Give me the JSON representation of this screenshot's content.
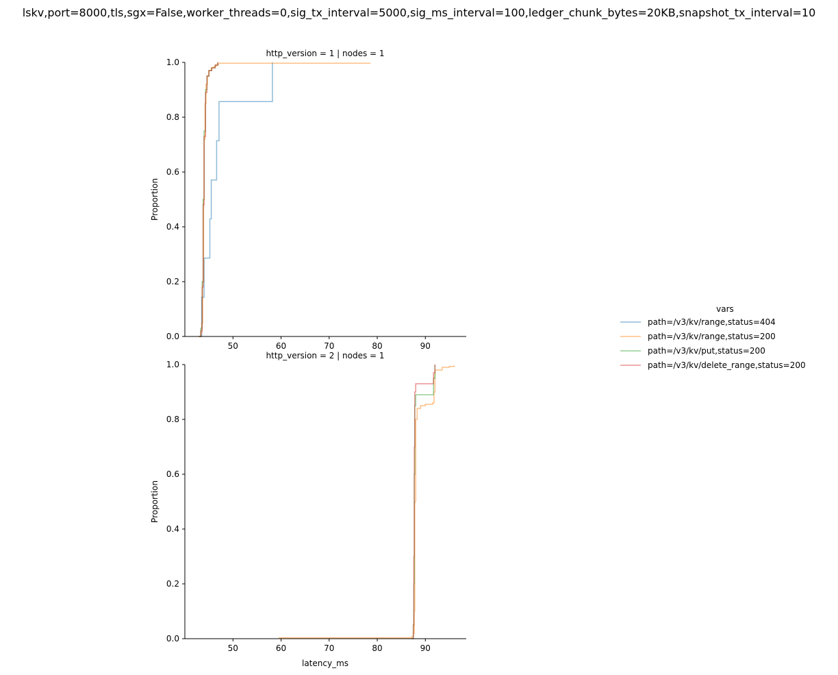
{
  "suptitle": "lskv,port=8000,tls,sgx=False,worker_threads=0,sig_tx_interval=5000,sig_ms_interval=100,ledger_chunk_bytes=20KB,snapshot_tx_interval=10",
  "legend": {
    "title": "vars",
    "entries": [
      {
        "label": "path=/v3/kv/range,status=404",
        "color": "#1f77b4"
      },
      {
        "label": "path=/v3/kv/range,status=200",
        "color": "#ff7f0e"
      },
      {
        "label": "path=/v3/kv/put,status=200",
        "color": "#2ca02c"
      },
      {
        "label": "path=/v3/kv/delete_range,status=200",
        "color": "#d62728"
      }
    ]
  },
  "chart_data": [
    {
      "type": "line",
      "title": "http_version = 1 | nodes = 1",
      "xlabel": "",
      "ylabel": "Proportion",
      "xlim": [
        40,
        98.5
      ],
      "ylim": [
        0,
        1
      ],
      "xticks": [
        "50",
        "60",
        "70",
        "80",
        "90"
      ],
      "yticks": [
        "0.0",
        "0.2",
        "0.4",
        "0.6",
        "0.8",
        "1.0"
      ],
      "step": true,
      "series": [
        {
          "name": "path=/v3/kv/range,status=404",
          "color": "#1f77b4",
          "x": [
            43.5,
            43.5,
            44.0,
            44.0,
            45.2,
            45.2,
            45.5,
            45.5,
            46.6,
            46.6,
            47.1,
            47.1,
            58.2,
            58.2
          ],
          "y": [
            0.0,
            0.143,
            0.143,
            0.286,
            0.286,
            0.429,
            0.429,
            0.571,
            0.571,
            0.714,
            0.714,
            0.857,
            0.857,
            1.0
          ]
        },
        {
          "name": "path=/v3/kv/range,status=200",
          "color": "#ff7f0e",
          "x": [
            42.8,
            43.3,
            43.5,
            43.7,
            43.9,
            44.0,
            44.2,
            44.4,
            44.7,
            45.0,
            45.5,
            46.0,
            46.5,
            47.0,
            78.5
          ],
          "y": [
            0.0,
            0.01,
            0.05,
            0.2,
            0.5,
            0.72,
            0.85,
            0.92,
            0.95,
            0.97,
            0.98,
            0.985,
            0.99,
            0.997,
            0.998
          ]
        },
        {
          "name": "path=/v3/kv/put,status=200",
          "color": "#2ca02c",
          "x": [
            43.0,
            43.3,
            43.6,
            43.8,
            44.0,
            44.3,
            44.6,
            45.0,
            45.6,
            46.3,
            46.8
          ],
          "y": [
            0.0,
            0.03,
            0.2,
            0.5,
            0.75,
            0.9,
            0.95,
            0.97,
            0.98,
            0.99,
            1.0
          ]
        },
        {
          "name": "path=/v3/kv/delete_range,status=200",
          "color": "#d62728",
          "x": [
            43.0,
            43.3,
            43.6,
            43.8,
            44.0,
            44.3,
            44.6,
            45.0,
            45.6,
            46.3,
            46.8
          ],
          "y": [
            0.0,
            0.02,
            0.18,
            0.48,
            0.73,
            0.89,
            0.95,
            0.97,
            0.98,
            0.99,
            1.0
          ]
        }
      ]
    },
    {
      "type": "line",
      "title": "http_version = 2 | nodes = 1",
      "xlabel": "latency_ms",
      "ylabel": "Proportion",
      "xlim": [
        40,
        98.5
      ],
      "ylim": [
        0,
        1
      ],
      "xticks": [
        "50",
        "60",
        "70",
        "80",
        "90"
      ],
      "yticks": [
        "0.0",
        "0.2",
        "0.4",
        "0.6",
        "0.8",
        "1.0"
      ],
      "step": true,
      "series": [
        {
          "name": "path=/v3/kv/range,status=200",
          "color": "#ff7f0e",
          "x": [
            59.5,
            86.0,
            87.2,
            87.5,
            87.7,
            87.8,
            88.0,
            88.3,
            89.0,
            90.0,
            91.5,
            91.8,
            92.0,
            93.5,
            95.0,
            96.0
          ],
          "y": [
            0.003,
            0.003,
            0.008,
            0.02,
            0.1,
            0.5,
            0.8,
            0.84,
            0.85,
            0.855,
            0.86,
            0.9,
            0.98,
            0.99,
            0.993,
            0.997
          ]
        },
        {
          "name": "path=/v3/kv/put,status=200",
          "color": "#2ca02c",
          "x": [
            87.2,
            87.5,
            87.6,
            87.7,
            87.8,
            88.0,
            91.5,
            91.7,
            92.0
          ],
          "y": [
            0.0,
            0.05,
            0.2,
            0.6,
            0.85,
            0.89,
            0.89,
            0.95,
            1.0
          ]
        },
        {
          "name": "path=/v3/kv/delete_range,status=200",
          "color": "#d62728",
          "x": [
            87.2,
            87.5,
            87.6,
            87.7,
            87.8,
            88.0,
            91.5,
            91.7,
            92.0
          ],
          "y": [
            0.0,
            0.05,
            0.3,
            0.7,
            0.9,
            0.93,
            0.93,
            0.97,
            1.0
          ]
        }
      ]
    }
  ]
}
